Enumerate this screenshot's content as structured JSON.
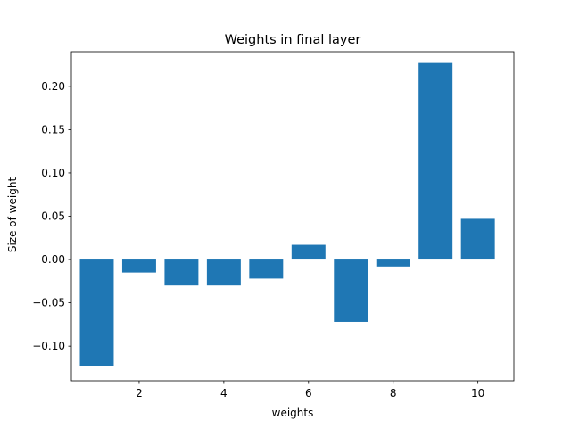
{
  "chart_data": {
    "type": "bar",
    "title": "Weights in final layer",
    "xlabel": "weights",
    "ylabel": "Size of weight",
    "x": [
      1,
      2,
      3,
      4,
      5,
      6,
      7,
      8,
      9,
      10
    ],
    "values": [
      -0.123,
      -0.015,
      -0.03,
      -0.03,
      -0.022,
      0.017,
      -0.072,
      -0.008,
      0.227,
      0.047
    ],
    "xlim": [
      0.4,
      10.85
    ],
    "ylim": [
      -0.14,
      0.24
    ],
    "xticks": [
      2,
      4,
      6,
      8,
      10
    ],
    "xtick_labels": [
      "2",
      "4",
      "6",
      "8",
      "10"
    ],
    "yticks": [
      -0.1,
      -0.05,
      0.0,
      0.05,
      0.1,
      0.15,
      0.2
    ],
    "ytick_labels": [
      "−0.10",
      "−0.05",
      "0.00",
      "0.05",
      "0.10",
      "0.15",
      "0.20"
    ],
    "bar_color": "#1f77b4",
    "grid": false,
    "legend": "none"
  }
}
